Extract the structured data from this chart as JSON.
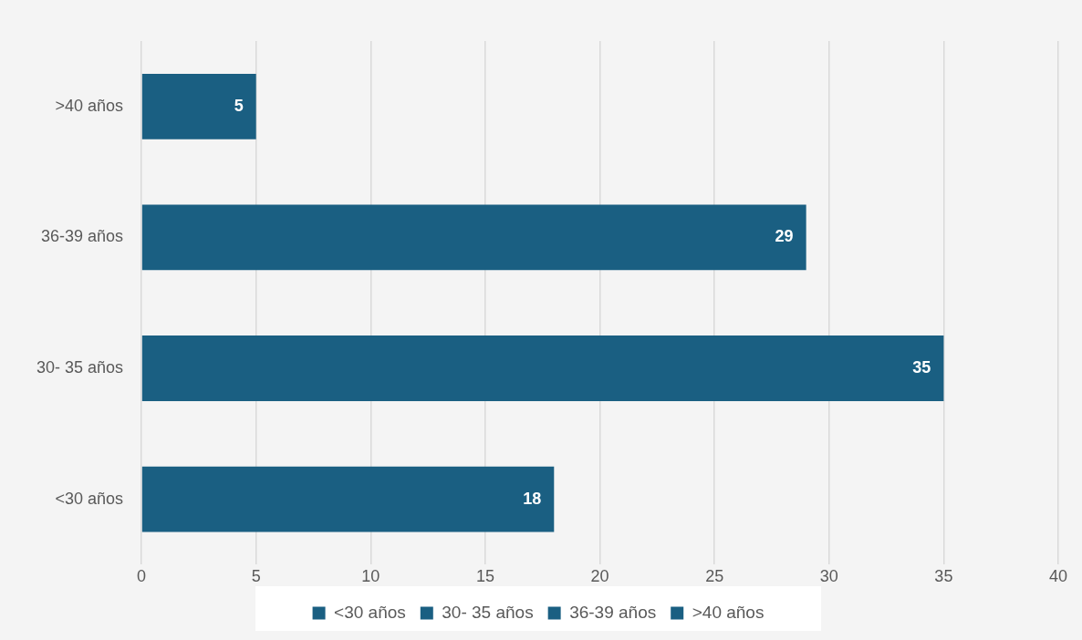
{
  "chart_data": {
    "type": "bar",
    "orientation": "horizontal",
    "stacked": true,
    "categories": [
      ">40 años",
      "36-39 años",
      "30- 35 años",
      "<30 años"
    ],
    "series": [
      {
        "name": "<30 años",
        "color": "#1a5f82",
        "values": [
          null,
          null,
          null,
          18
        ]
      },
      {
        "name": "30- 35 años",
        "color": "#1a5f82",
        "values": [
          null,
          null,
          35,
          null
        ]
      },
      {
        "name": "36-39 años",
        "color": "#1a5f82",
        "values": [
          null,
          29,
          null,
          null
        ]
      },
      {
        "name": ">40 años",
        "color": "#1a5f82",
        "values": [
          5,
          null,
          null,
          null
        ]
      }
    ],
    "xlim": [
      0,
      40
    ],
    "xticks": [
      0,
      5,
      10,
      15,
      20,
      25,
      30,
      35,
      40
    ],
    "grid": "x",
    "legend": "bottom",
    "data_labels": true
  }
}
